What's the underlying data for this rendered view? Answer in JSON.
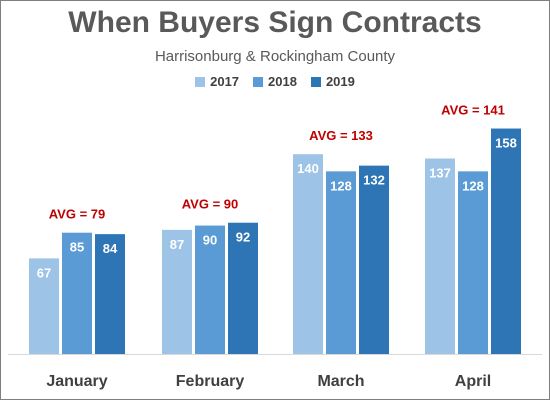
{
  "chart_data": {
    "type": "bar",
    "title": "When Buyers Sign Contracts",
    "subtitle": "Harrisonburg & Rockingham County",
    "categories": [
      "January",
      "February",
      "March",
      "April"
    ],
    "series": [
      {
        "name": "2017",
        "color": "#9dc3e6",
        "values": [
          67,
          87,
          140,
          137
        ]
      },
      {
        "name": "2018",
        "color": "#5b9bd5",
        "values": [
          85,
          90,
          128,
          128
        ]
      },
      {
        "name": "2019",
        "color": "#2e75b6",
        "values": [
          84,
          92,
          132,
          158
        ]
      }
    ],
    "annotations": [
      "AVG = 79",
      "AVG = 90",
      "AVG = 133",
      "AVG = 141"
    ],
    "annotation_color": "#c00000",
    "ylim": [
      0,
      170
    ],
    "grid": false,
    "legend_position": "top-center"
  }
}
